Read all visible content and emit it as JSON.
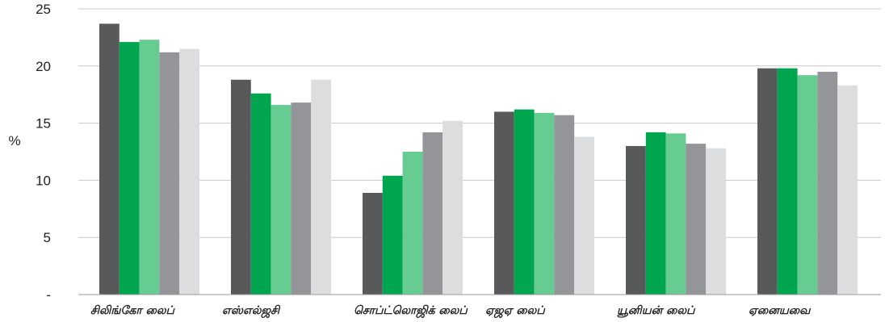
{
  "chart_data": {
    "type": "bar",
    "ylabel": "%",
    "ylim": [
      0,
      25
    ],
    "yticks": [
      {
        "value": 0,
        "label": "-"
      },
      {
        "value": 5,
        "label": "5"
      },
      {
        "value": 10,
        "label": "10"
      },
      {
        "value": 15,
        "label": "15"
      },
      {
        "value": 20,
        "label": "20"
      },
      {
        "value": 25,
        "label": "25"
      }
    ],
    "grid": true,
    "legend": "none",
    "categories": [
      "சிலிங்கோ லைப்",
      "எஸ்எல்ஜசி",
      "சொப்ட்லொஜிக் லைப்",
      "ஏஜஏ லைப்",
      "யூனியன் லைப்",
      "ஏனையவை"
    ],
    "series": [
      {
        "color": "#58595b",
        "values": [
          23.7,
          18.8,
          8.9,
          16.0,
          13.0,
          19.8
        ]
      },
      {
        "color": "#00a64f",
        "values": [
          22.1,
          17.6,
          10.4,
          16.2,
          14.2,
          19.8
        ]
      },
      {
        "color": "#66cc92",
        "values": [
          22.3,
          16.6,
          12.5,
          15.9,
          14.1,
          19.2
        ]
      },
      {
        "color": "#939598",
        "values": [
          21.2,
          16.8,
          14.2,
          15.7,
          13.2,
          19.5
        ]
      },
      {
        "color": "#dcddde",
        "values": [
          21.5,
          18.8,
          15.2,
          13.8,
          12.8,
          18.3
        ]
      }
    ]
  }
}
